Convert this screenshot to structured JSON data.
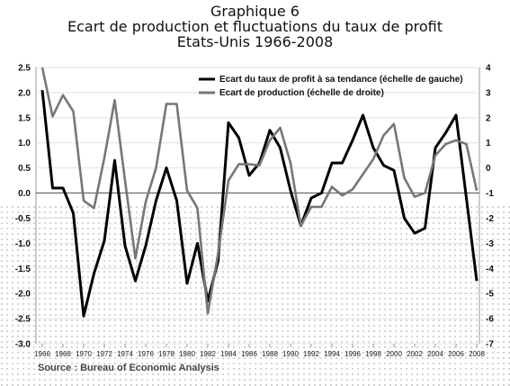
{
  "header": {
    "title": "Graphique 6",
    "subtitle": "Ecart de production et fluctuations du taux de profit",
    "subtitle2": "Etats-Unis 1966-2008"
  },
  "source": "Source : Bureau of Economic Analysis",
  "chart_data": {
    "type": "line",
    "title": "Graphique 6",
    "x": [
      1966,
      1967,
      1968,
      1969,
      1970,
      1971,
      1972,
      1973,
      1974,
      1975,
      1976,
      1977,
      1978,
      1979,
      1980,
      1981,
      1982,
      1983,
      1984,
      1985,
      1986,
      1987,
      1988,
      1989,
      1990,
      1991,
      1992,
      1993,
      1994,
      1995,
      1996,
      1997,
      1998,
      1999,
      2000,
      2001,
      2002,
      2003,
      2004,
      2005,
      2006,
      2007,
      2008
    ],
    "xticks": [
      "1966",
      "1968",
      "1970",
      "1972",
      "1974",
      "1976",
      "1978",
      "1980",
      "1982",
      "1984",
      "1986",
      "1988",
      "1990",
      "1992",
      "1994",
      "1996",
      "1998",
      "2000",
      "2002",
      "2004",
      "2006",
      "2008"
    ],
    "yticks_left": [
      "2.5",
      "2.0",
      "1.5",
      "1.0",
      "0.5",
      "0.0",
      "-0.5",
      "-1.0",
      "-1.5",
      "-2.0",
      "-2.5",
      "-3.0"
    ],
    "yticks_right": [
      "4",
      "3",
      "2",
      "1",
      "0",
      "-1",
      "-2",
      "-3",
      "-4",
      "-5",
      "-6",
      "-7"
    ],
    "ylim_left": [
      -3.0,
      2.5
    ],
    "ylim_right": [
      -7,
      4
    ],
    "legend_position": "top-right",
    "series": [
      {
        "name": "Ecart du taux de profit à sa tendance (échelle de gauche)",
        "axis": "left",
        "color": "#000000",
        "values": [
          2.05,
          0.1,
          0.1,
          -0.4,
          -2.45,
          -1.6,
          -0.95,
          0.65,
          -1.05,
          -1.75,
          -1.05,
          -0.15,
          0.5,
          -0.15,
          -1.8,
          -1.0,
          -2.15,
          -1.35,
          1.4,
          1.1,
          0.35,
          0.6,
          1.25,
          0.9,
          0.05,
          -0.65,
          -0.1,
          0.0,
          0.6,
          0.6,
          1.05,
          1.55,
          0.9,
          0.55,
          0.45,
          -0.5,
          -0.8,
          -0.7,
          0.9,
          1.2,
          1.55,
          -0.1,
          -1.75
        ]
      },
      {
        "name": "Ecart de production (échelle de droite)",
        "axis": "right",
        "color": "#777777",
        "values": [
          4.0,
          2.05,
          2.9,
          2.25,
          -1.3,
          -1.6,
          0.4,
          2.7,
          -0.5,
          -3.6,
          -1.35,
          0.0,
          2.55,
          2.55,
          -0.9,
          -1.6,
          -5.8,
          -3.4,
          -0.5,
          0.15,
          0.15,
          0.1,
          1.1,
          1.6,
          0.2,
          -2.3,
          -1.55,
          -1.55,
          -0.75,
          -1.1,
          -0.85,
          -0.25,
          0.35,
          1.3,
          1.75,
          -0.4,
          -1.15,
          -1.0,
          0.5,
          0.95,
          1.1,
          0.95,
          -0.9
        ]
      }
    ]
  }
}
